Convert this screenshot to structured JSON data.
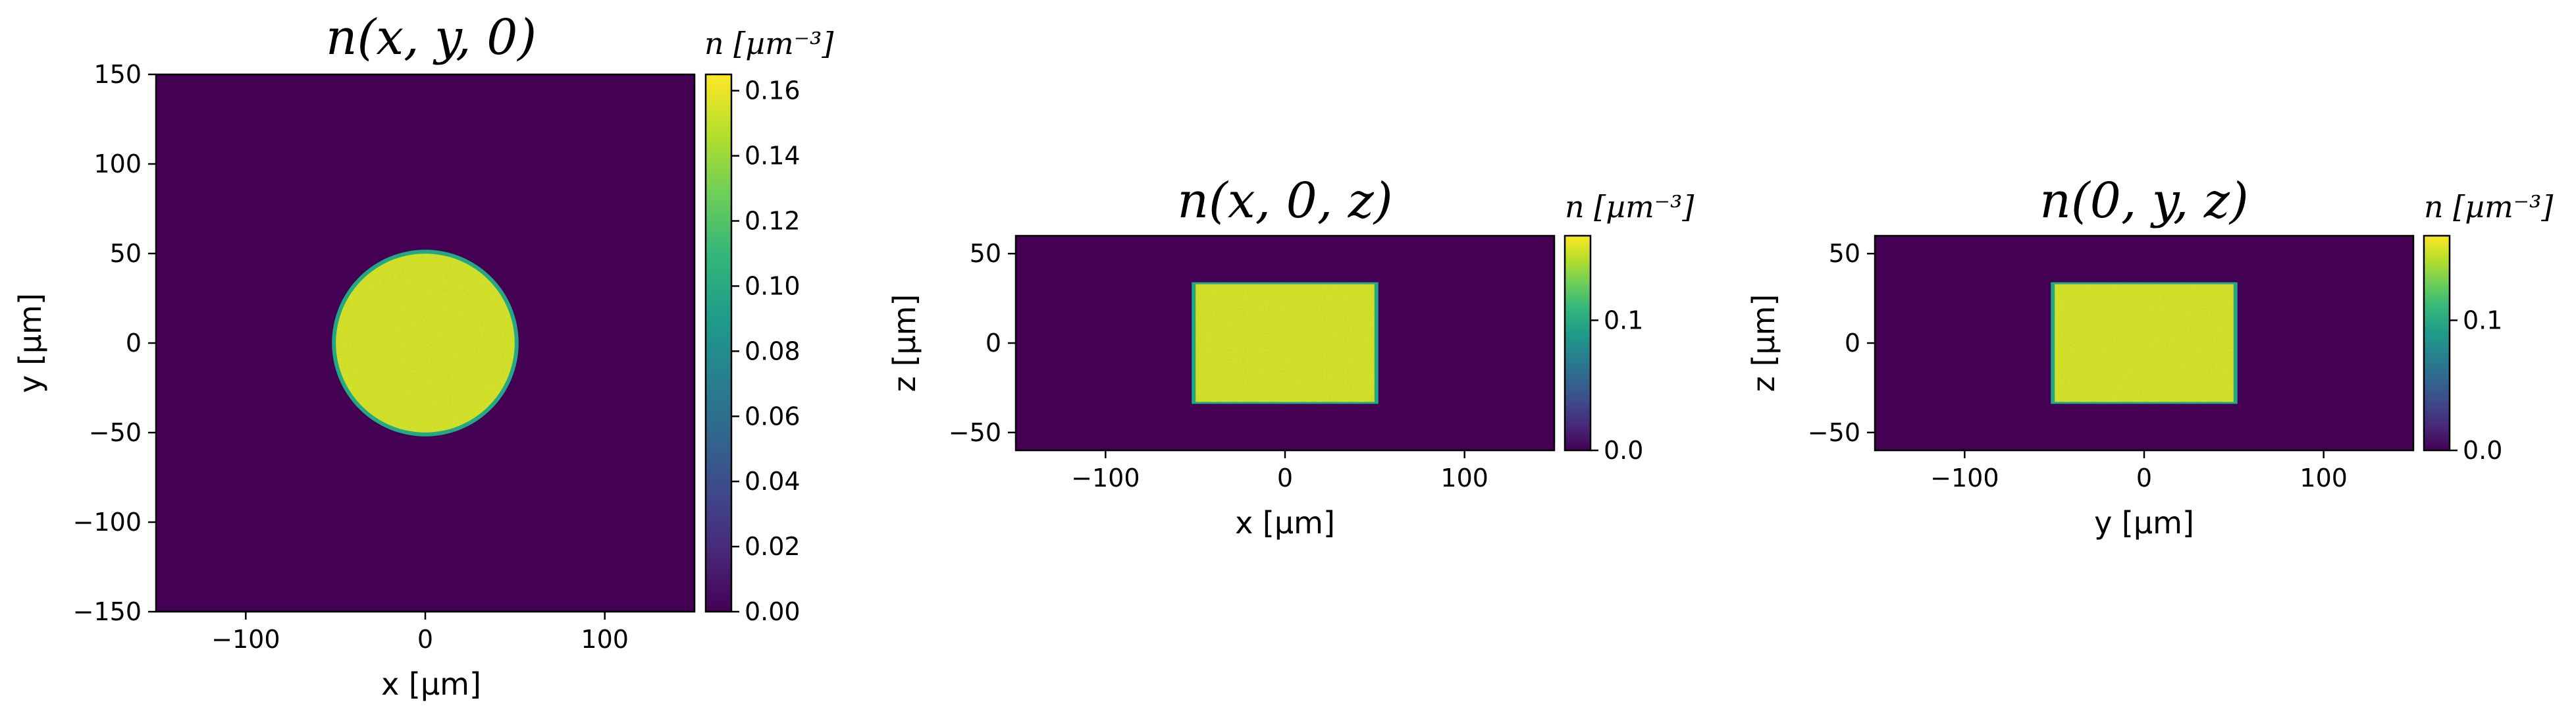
{
  "chart_data": [
    {
      "type": "heatmap",
      "title": "n(x, y, 0)",
      "xlabel": "x [µm]",
      "ylabel": "y [µm]",
      "xlim": [
        -150,
        150
      ],
      "ylim": [
        -150,
        150
      ],
      "xticks": [
        -100,
        0,
        100
      ],
      "yticks": [
        150,
        100,
        50,
        0,
        -50,
        -100,
        -150
      ],
      "xtick_labels": [
        "−100",
        "0",
        "100"
      ],
      "ytick_labels": [
        "150",
        "100",
        "50",
        "0",
        "−50",
        "−100",
        "−150"
      ],
      "shape": "disk",
      "region": {
        "center": [
          0,
          0
        ],
        "radius": 52
      },
      "value_inside": 0.155,
      "value_outside": 0.0,
      "colorbar": {
        "label": "n [µm⁻³]",
        "range": [
          0.0,
          0.165
        ],
        "ticks": [
          0.0,
          0.02,
          0.04,
          0.06,
          0.08,
          0.1,
          0.12,
          0.14,
          0.16
        ],
        "tick_labels": [
          "0.00",
          "0.02",
          "0.04",
          "0.06",
          "0.08",
          "0.10",
          "0.12",
          "0.14",
          "0.16"
        ]
      },
      "colormap": "viridis"
    },
    {
      "type": "heatmap",
      "title": "n(x, 0, z)",
      "xlabel": "x [µm]",
      "ylabel": "z [µm]",
      "xlim": [
        -150,
        150
      ],
      "ylim": [
        -60,
        60
      ],
      "xticks": [
        -100,
        0,
        100
      ],
      "yticks": [
        50,
        0,
        -50
      ],
      "xtick_labels": [
        "−100",
        "0",
        "100"
      ],
      "ytick_labels": [
        "50",
        "0",
        "−50"
      ],
      "shape": "rectangle",
      "region": {
        "x": [
          -52,
          52
        ],
        "y": [
          -34,
          34
        ]
      },
      "value_inside": 0.155,
      "value_outside": 0.0,
      "colorbar": {
        "label": "n [µm⁻³]",
        "range": [
          0.0,
          0.165
        ],
        "ticks": [
          0.0,
          0.1
        ],
        "tick_labels": [
          "0.0",
          "0.1"
        ]
      },
      "colormap": "viridis"
    },
    {
      "type": "heatmap",
      "title": "n(0, y, z)",
      "xlabel": "y [µm]",
      "ylabel": "z [µm]",
      "xlim": [
        -150,
        150
      ],
      "ylim": [
        -60,
        60
      ],
      "xticks": [
        -100,
        0,
        100
      ],
      "yticks": [
        50,
        0,
        -50
      ],
      "xtick_labels": [
        "−100",
        "0",
        "100"
      ],
      "ytick_labels": [
        "50",
        "0",
        "−50"
      ],
      "shape": "rectangle",
      "region": {
        "x": [
          -52,
          52
        ],
        "y": [
          -34,
          34
        ]
      },
      "value_inside": 0.155,
      "value_outside": 0.0,
      "colorbar": {
        "label": "n [µm⁻³]",
        "range": [
          0.0,
          0.165
        ],
        "ticks": [
          0.0,
          0.1
        ],
        "tick_labels": [
          "0.0",
          "0.1"
        ]
      },
      "colormap": "viridis"
    }
  ],
  "colors": {
    "background": "#440154",
    "fill": "#d2e21b",
    "edge": "#22a884",
    "viridis_stops": [
      "#440154",
      "#482878",
      "#3e4989",
      "#31688e",
      "#26828e",
      "#1f9e89",
      "#35b779",
      "#6ece58",
      "#b5de2b",
      "#fde725"
    ]
  }
}
